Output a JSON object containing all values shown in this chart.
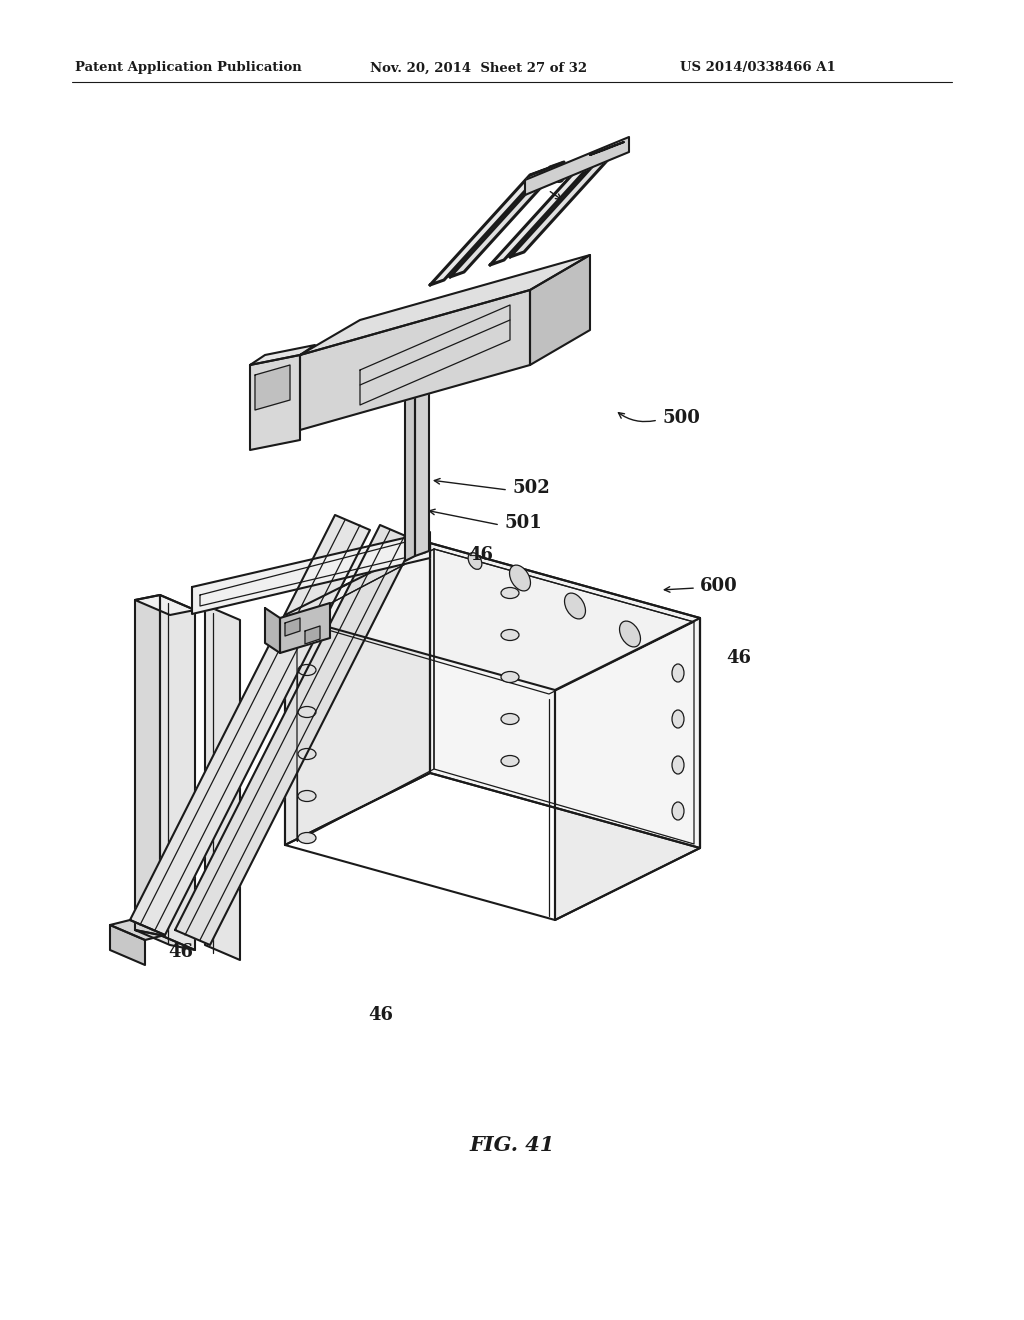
{
  "bg_color": "#ffffff",
  "line_color": "#1a1a1a",
  "header_text": "Patent Application Publication",
  "header_date": "Nov. 20, 2014  Sheet 27 of 32",
  "header_patent": "US 2014/0338466 A1",
  "fig_label": "FIG. 41"
}
